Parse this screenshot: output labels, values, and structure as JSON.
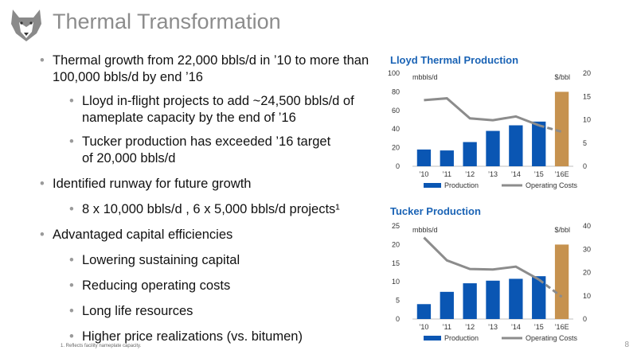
{
  "title": "Thermal Transformation",
  "bullets": [
    {
      "level": 1,
      "text": "Thermal growth from 22,000 bbls/d in ’10 to more than 100,000 bbls/d by end ’16"
    },
    {
      "level": 2,
      "text": "Lloyd in-flight projects to add ~24,500 bbls/d of nameplate capacity by the end of ’16"
    },
    {
      "level": 2,
      "text": "Tucker production has exceeded ’16 target of 20,000 bbls/d"
    },
    {
      "level": 1,
      "text": "Identified runway for future growth"
    },
    {
      "level": 2,
      "text": "8 x 10,000 bbls/d , 6 x 5,000 bbls/d projects¹"
    },
    {
      "level": 1,
      "text": "Advantaged capital efficiencies"
    },
    {
      "level": 2,
      "text": "Lowering sustaining capital"
    },
    {
      "level": 2,
      "text": "Reducing operating costs"
    },
    {
      "level": 2,
      "text": "Long life resources"
    },
    {
      "level": 2,
      "text": "Higher price realizations (vs. bitumen)"
    }
  ],
  "footnote": "1.  Reflects facility nameplate capacity.",
  "page_number": "8",
  "colors": {
    "bar": "#0a56b3",
    "bar_estimate": "#c6924f",
    "line": "#8c8c8c",
    "title": "#1a63b5"
  },
  "chart_data": [
    {
      "type": "bar",
      "title": "Lloyd Thermal Production",
      "categories": [
        "’10",
        "’11",
        "’12",
        "’13",
        "’14",
        "’15",
        "’16E"
      ],
      "ylabel": "mbbls/d",
      "y2label": "$/bbl",
      "ylim": [
        0,
        100
      ],
      "yticks": [
        0,
        20,
        40,
        60,
        80,
        100
      ],
      "y2lim": [
        0,
        20
      ],
      "y2ticks": [
        0,
        5,
        10,
        15,
        20
      ],
      "legend_position": "bottom",
      "series": [
        {
          "name": "Production",
          "type": "bar",
          "axis": "left",
          "values": [
            18,
            17,
            26,
            38,
            44,
            48,
            80
          ]
        },
        {
          "name": "Operating Costs",
          "type": "line",
          "axis": "right",
          "values": [
            14.2,
            14.6,
            10.3,
            9.9,
            10.7,
            8.8,
            7.4
          ],
          "dashed_from_index": 5
        }
      ]
    },
    {
      "type": "bar",
      "title": "Tucker Production",
      "categories": [
        "’10",
        "’11",
        "’12",
        "’13",
        "’14",
        "’15",
        "’16E"
      ],
      "ylabel": "mbbls/d",
      "y2label": "$/bbl",
      "ylim": [
        0,
        25
      ],
      "yticks": [
        0,
        5,
        10,
        15,
        20,
        25
      ],
      "y2lim": [
        0,
        40
      ],
      "y2ticks": [
        0,
        10,
        20,
        30,
        40
      ],
      "legend_position": "bottom",
      "series": [
        {
          "name": "Production",
          "type": "bar",
          "axis": "left",
          "values": [
            4,
            7.3,
            9.6,
            10.3,
            10.8,
            11.5,
            20
          ]
        },
        {
          "name": "Operating Costs",
          "type": "line",
          "axis": "right",
          "values": [
            35,
            25.2,
            21.5,
            21.3,
            22.5,
            17,
            9.5
          ],
          "dashed_from_index": 5
        }
      ]
    }
  ]
}
